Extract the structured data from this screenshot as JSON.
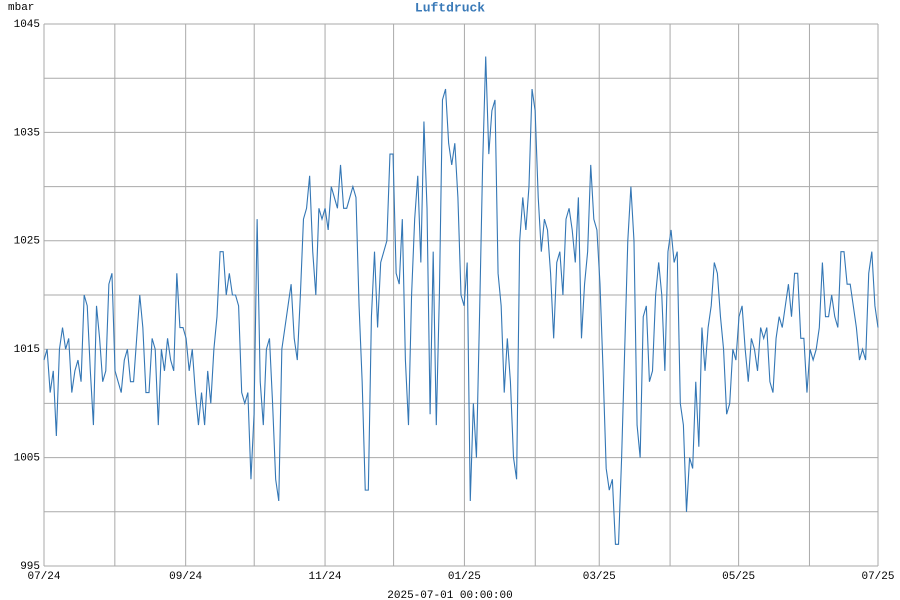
{
  "chart_data": {
    "type": "line",
    "title": "Luftdruck",
    "title_color": "#3a7ab8",
    "y_label": "mbar",
    "x_label": "2025-07-01 00:00:00",
    "xlim": [
      0,
      365
    ],
    "xticks": [
      {
        "value": 0,
        "label": "07/24"
      },
      {
        "value": 62,
        "label": "09/24"
      },
      {
        "value": 123,
        "label": "11/24"
      },
      {
        "value": 184,
        "label": "01/25"
      },
      {
        "value": 243,
        "label": "03/25"
      },
      {
        "value": 304,
        "label": "05/25"
      },
      {
        "value": 365,
        "label": "07/25"
      }
    ],
    "xgrid": [
      0,
      31,
      62,
      92,
      123,
      153,
      184,
      215,
      243,
      274,
      304,
      335,
      365
    ],
    "ylim": [
      995,
      1045
    ],
    "yticks": [
      995,
      1005,
      1015,
      1025,
      1035,
      1045
    ],
    "ygrid": [
      995,
      1000,
      1005,
      1010,
      1015,
      1020,
      1025,
      1030,
      1035,
      1040,
      1045
    ],
    "grid": true,
    "series": [
      {
        "color": "#3477b5",
        "values": [
          1014,
          1015,
          1011,
          1013,
          1007,
          1015,
          1017,
          1015,
          1016,
          1011,
          1013,
          1014,
          1012,
          1020,
          1019,
          1013,
          1008,
          1019,
          1016,
          1012,
          1013,
          1021,
          1022,
          1013,
          1012,
          1011,
          1014,
          1015,
          1012,
          1012,
          1016,
          1020,
          1017,
          1011,
          1011,
          1016,
          1015,
          1008,
          1015,
          1013,
          1016,
          1014,
          1013,
          1022,
          1017,
          1017,
          1016,
          1013,
          1015,
          1011,
          1008,
          1011,
          1008,
          1013,
          1010,
          1015,
          1018,
          1024,
          1024,
          1020,
          1022,
          1020,
          1020,
          1019,
          1011,
          1010,
          1011,
          1003,
          1009,
          1027,
          1012,
          1008,
          1015,
          1016,
          1010,
          1003,
          1001,
          1015,
          1017,
          1019,
          1021,
          1016,
          1014,
          1020,
          1027,
          1028,
          1031,
          1024,
          1020,
          1028,
          1027,
          1028,
          1026,
          1030,
          1029,
          1028,
          1032,
          1028,
          1028,
          1029,
          1030,
          1029,
          1019,
          1012,
          1002,
          1002,
          1018,
          1024,
          1017,
          1023,
          1024,
          1025,
          1033,
          1033,
          1022,
          1021,
          1027,
          1014,
          1008,
          1020,
          1027,
          1031,
          1023,
          1036,
          1028,
          1009,
          1024,
          1008,
          1020,
          1038,
          1039,
          1034,
          1032,
          1034,
          1029,
          1020,
          1019,
          1023,
          1001,
          1010,
          1005,
          1018,
          1032,
          1042,
          1033,
          1037,
          1038,
          1022,
          1019,
          1011,
          1016,
          1012,
          1005,
          1003,
          1025,
          1029,
          1026,
          1030,
          1039,
          1037,
          1029,
          1024,
          1027,
          1026,
          1022,
          1016,
          1023,
          1024,
          1020,
          1027,
          1028,
          1026,
          1023,
          1029,
          1016,
          1021,
          1024,
          1032,
          1027,
          1026,
          1021,
          1013,
          1004,
          1002,
          1003,
          997,
          997,
          1005,
          1015,
          1025,
          1030,
          1025,
          1008,
          1005,
          1018,
          1019,
          1012,
          1013,
          1020,
          1023,
          1020,
          1013,
          1024,
          1026,
          1023,
          1024,
          1010,
          1008,
          1000,
          1005,
          1004,
          1012,
          1006,
          1017,
          1013,
          1017,
          1019,
          1023,
          1022,
          1018,
          1015,
          1009,
          1010,
          1015,
          1014,
          1018,
          1019,
          1015,
          1012,
          1016,
          1015,
          1013,
          1017,
          1016,
          1017,
          1012,
          1011,
          1016,
          1018,
          1017,
          1019,
          1021,
          1018,
          1022,
          1022,
          1016,
          1016,
          1011,
          1015,
          1014,
          1015,
          1017,
          1023,
          1018,
          1018,
          1020,
          1018,
          1017,
          1024,
          1024,
          1021,
          1021,
          1019,
          1017,
          1014,
          1015,
          1014,
          1022,
          1024,
          1019,
          1017
        ]
      }
    ]
  }
}
